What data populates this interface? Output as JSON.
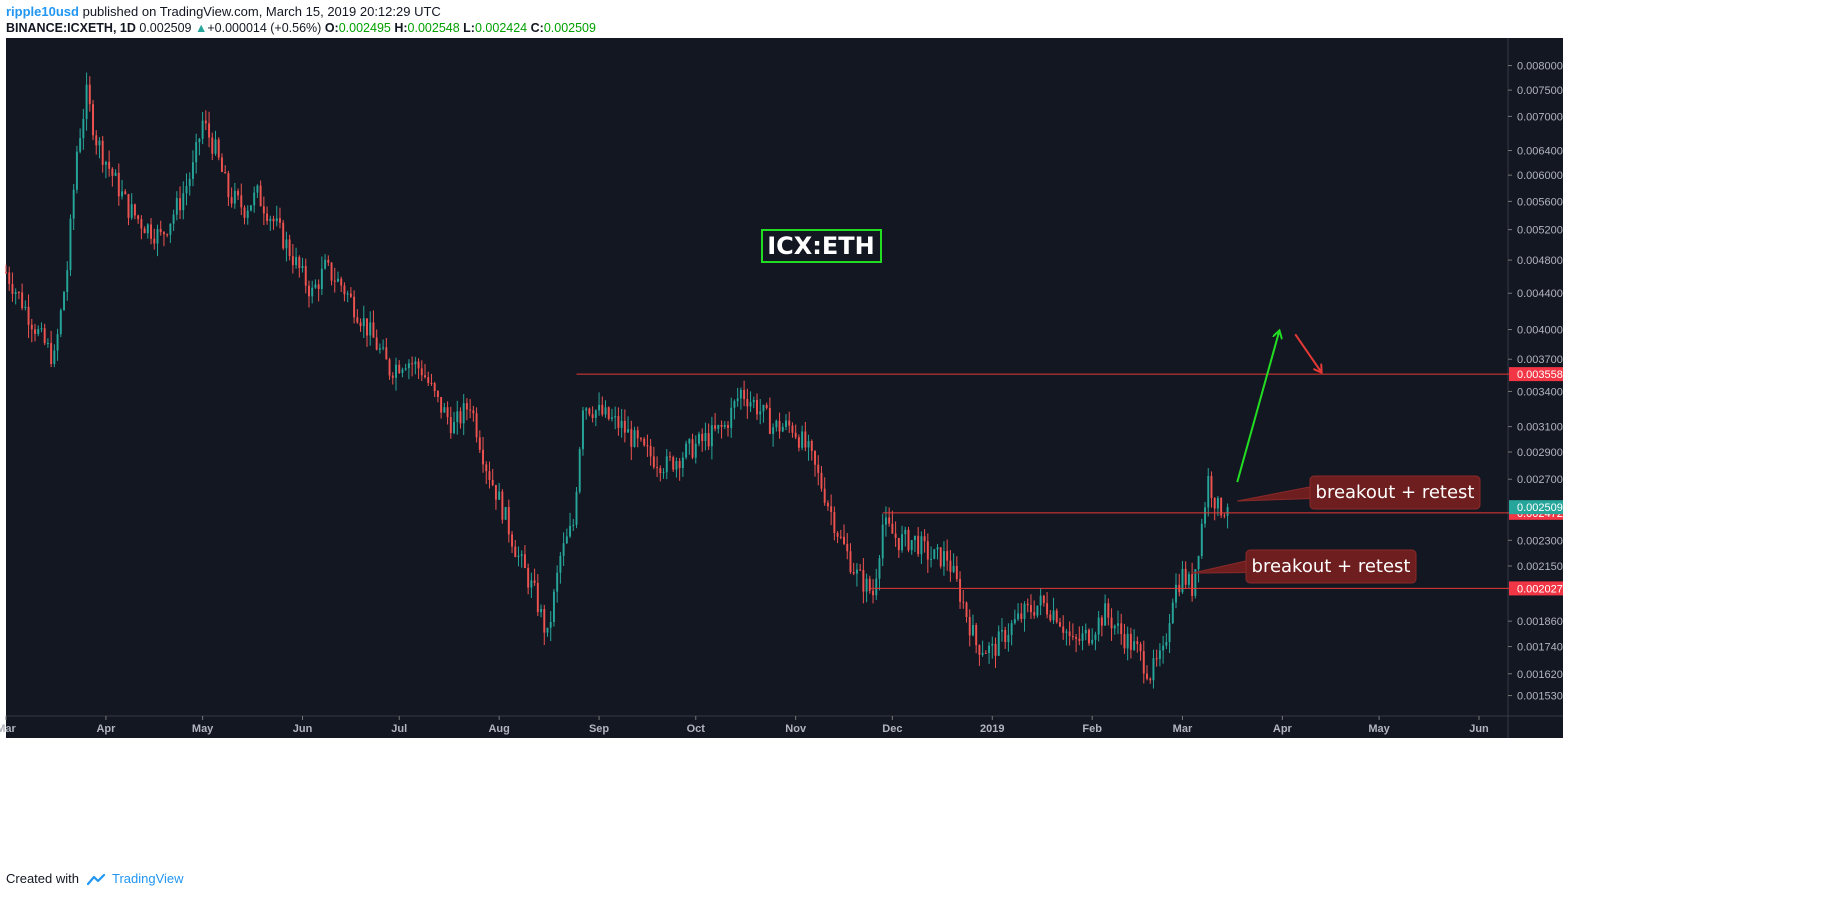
{
  "header": {
    "publisher": "ripple10usd",
    "published_text": "published on TradingView.com, March 15, 2019 20:12:29 UTC",
    "symbol": "BINANCE:ICXETH, 1D",
    "last": "0.002509",
    "change_arrow": "▲",
    "change": "+0.000014 (+0.56%)",
    "o_label": "O:",
    "o_value": "0.002495",
    "h_label": "H:",
    "h_value": "0.002548",
    "l_label": "L:",
    "l_value": "0.002424",
    "c_label": "C:",
    "c_value": "0.002509"
  },
  "footer": {
    "created_with": "Created with",
    "brand": "TradingView"
  },
  "colors": {
    "background": "#131722",
    "up": "#26a69a",
    "down": "#ef5350",
    "level_line": "#e53935",
    "green_arrow": "#22dd22",
    "red_arrow": "#e53935",
    "callout_bg": "#6e1e1e",
    "title_border": "#22dd22"
  },
  "chart_data": {
    "type": "candlestick",
    "title": "ICX:ETH",
    "symbol": "BINANCE:ICXETH",
    "interval": "1D",
    "x_range": [
      "2018-03-01",
      "2019-06-10"
    ],
    "y_scale": "log",
    "y_range": [
      0.00145,
      0.0086
    ],
    "y_ticks": [
      "0.008000",
      "0.007500",
      "0.007000",
      "0.006400",
      "0.006000",
      "0.005600",
      "0.005200",
      "0.004800",
      "0.004400",
      "0.004000",
      "0.003700",
      "0.003400",
      "0.003100",
      "0.002900",
      "0.002700",
      "0.002300",
      "0.002150",
      "0.001860",
      "0.001740",
      "0.001620",
      "0.001530"
    ],
    "x_tick_labels": [
      {
        "date": "2018-03-01",
        "label": "Mar"
      },
      {
        "date": "2018-04-01",
        "label": "Apr"
      },
      {
        "date": "2018-05-01",
        "label": "May"
      },
      {
        "date": "2018-06-01",
        "label": "Jun"
      },
      {
        "date": "2018-07-01",
        "label": "Jul"
      },
      {
        "date": "2018-08-01",
        "label": "Aug"
      },
      {
        "date": "2018-09-01",
        "label": "Sep"
      },
      {
        "date": "2018-10-01",
        "label": "Oct"
      },
      {
        "date": "2018-11-01",
        "label": "Nov"
      },
      {
        "date": "2018-12-01",
        "label": "Dec"
      },
      {
        "date": "2019-01-01",
        "label": "2019"
      },
      {
        "date": "2019-02-01",
        "label": "Feb"
      },
      {
        "date": "2019-03-01",
        "label": "Mar"
      },
      {
        "date": "2019-04-01",
        "label": "Apr"
      },
      {
        "date": "2019-05-01",
        "label": "May"
      },
      {
        "date": "2019-06-01",
        "label": "Jun"
      }
    ],
    "close_path": [
      [
        "2018-03-01",
        0.00465
      ],
      [
        "2018-03-06",
        0.0043
      ],
      [
        "2018-03-12",
        0.0039
      ],
      [
        "2018-03-16",
        0.0037
      ],
      [
        "2018-03-20",
        0.0047
      ],
      [
        "2018-03-23",
        0.0064
      ],
      [
        "2018-03-26",
        0.0074
      ],
      [
        "2018-03-29",
        0.0066
      ],
      [
        "2018-04-03",
        0.006
      ],
      [
        "2018-04-08",
        0.0055
      ],
      [
        "2018-04-12",
        0.0053
      ],
      [
        "2018-04-18",
        0.0051
      ],
      [
        "2018-04-24",
        0.0056
      ],
      [
        "2018-04-28",
        0.0061
      ],
      [
        "2018-05-01",
        0.0069
      ],
      [
        "2018-05-05",
        0.0064
      ],
      [
        "2018-05-09",
        0.0057
      ],
      [
        "2018-05-14",
        0.0055
      ],
      [
        "2018-05-18",
        0.0057
      ],
      [
        "2018-05-22",
        0.0054
      ],
      [
        "2018-05-27",
        0.005
      ],
      [
        "2018-06-01",
        0.0046
      ],
      [
        "2018-06-04",
        0.0044
      ],
      [
        "2018-06-08",
        0.0047
      ],
      [
        "2018-06-13",
        0.0045
      ],
      [
        "2018-06-18",
        0.0042
      ],
      [
        "2018-06-23",
        0.0039
      ],
      [
        "2018-06-28",
        0.0036
      ],
      [
        "2018-07-03",
        0.0037
      ],
      [
        "2018-07-08",
        0.0036
      ],
      [
        "2018-07-13",
        0.0033
      ],
      [
        "2018-07-18",
        0.0031
      ],
      [
        "2018-07-23",
        0.0033
      ],
      [
        "2018-07-28",
        0.0028
      ],
      [
        "2018-08-02",
        0.0025
      ],
      [
        "2018-08-07",
        0.0022
      ],
      [
        "2018-08-12",
        0.002
      ],
      [
        "2018-08-16",
        0.00178
      ],
      [
        "2018-08-20",
        0.0022
      ],
      [
        "2018-08-24",
        0.0024
      ],
      [
        "2018-08-27",
        0.0033
      ],
      [
        "2018-09-02",
        0.0032
      ],
      [
        "2018-09-08",
        0.0031
      ],
      [
        "2018-09-15",
        0.0029
      ],
      [
        "2018-09-22",
        0.0028
      ],
      [
        "2018-09-28",
        0.0029
      ],
      [
        "2018-10-04",
        0.003
      ],
      [
        "2018-10-10",
        0.0031
      ],
      [
        "2018-10-15",
        0.0034
      ],
      [
        "2018-10-19",
        0.0033
      ],
      [
        "2018-10-25",
        0.0031
      ],
      [
        "2018-10-31",
        0.0031
      ],
      [
        "2018-11-05",
        0.0029
      ],
      [
        "2018-11-10",
        0.0026
      ],
      [
        "2018-11-15",
        0.0023
      ],
      [
        "2018-11-20",
        0.0021
      ],
      [
        "2018-11-25",
        0.002
      ],
      [
        "2018-11-28",
        0.0024
      ],
      [
        "2018-12-03",
        0.0023
      ],
      [
        "2018-12-08",
        0.0023
      ],
      [
        "2018-12-13",
        0.0022
      ],
      [
        "2018-12-18",
        0.0022
      ],
      [
        "2018-12-22",
        0.002
      ],
      [
        "2018-12-27",
        0.00175
      ],
      [
        "2019-01-01",
        0.00172
      ],
      [
        "2019-01-06",
        0.00182
      ],
      [
        "2019-01-11",
        0.0019
      ],
      [
        "2019-01-16",
        0.00195
      ],
      [
        "2019-01-21",
        0.0019
      ],
      [
        "2019-01-26",
        0.00175
      ],
      [
        "2019-01-31",
        0.0018
      ],
      [
        "2019-02-05",
        0.0019
      ],
      [
        "2019-02-10",
        0.0018
      ],
      [
        "2019-02-15",
        0.00172
      ],
      [
        "2019-02-19",
        0.00162
      ],
      [
        "2019-02-23",
        0.0017
      ],
      [
        "2019-02-26",
        0.002
      ],
      [
        "2019-03-01",
        0.0021
      ],
      [
        "2019-03-04",
        0.00203
      ],
      [
        "2019-03-07",
        0.0024
      ],
      [
        "2019-03-09",
        0.0027
      ],
      [
        "2019-03-12",
        0.0025
      ],
      [
        "2019-03-15",
        0.002509
      ]
    ],
    "horizontal_levels": [
      {
        "value": 0.003558,
        "label": "0.003558",
        "from": "2018-08-25"
      },
      {
        "value": 0.002472,
        "label": "0.002472",
        "from": "2018-11-28"
      },
      {
        "value": 0.002027,
        "label": "0.002027",
        "from": "2018-11-24"
      }
    ],
    "last_price": {
      "value": 0.002509,
      "label": "0.002509"
    },
    "annotations": [
      {
        "type": "callout",
        "text": "breakout + retest",
        "anchor": [
          "2019-03-18",
          0.00255
        ]
      },
      {
        "type": "callout",
        "text": "breakout + retest",
        "anchor": [
          "2019-03-04",
          0.00211
        ]
      },
      {
        "type": "arrow",
        "direction": "up",
        "color": "green",
        "from": [
          "2019-03-18",
          0.00268
        ],
        "to": [
          "2019-03-31",
          0.00398
        ]
      },
      {
        "type": "arrow",
        "direction": "down",
        "color": "red",
        "from": [
          "2019-04-05",
          0.00395
        ],
        "to": [
          "2019-04-13",
          0.00358
        ]
      }
    ]
  }
}
